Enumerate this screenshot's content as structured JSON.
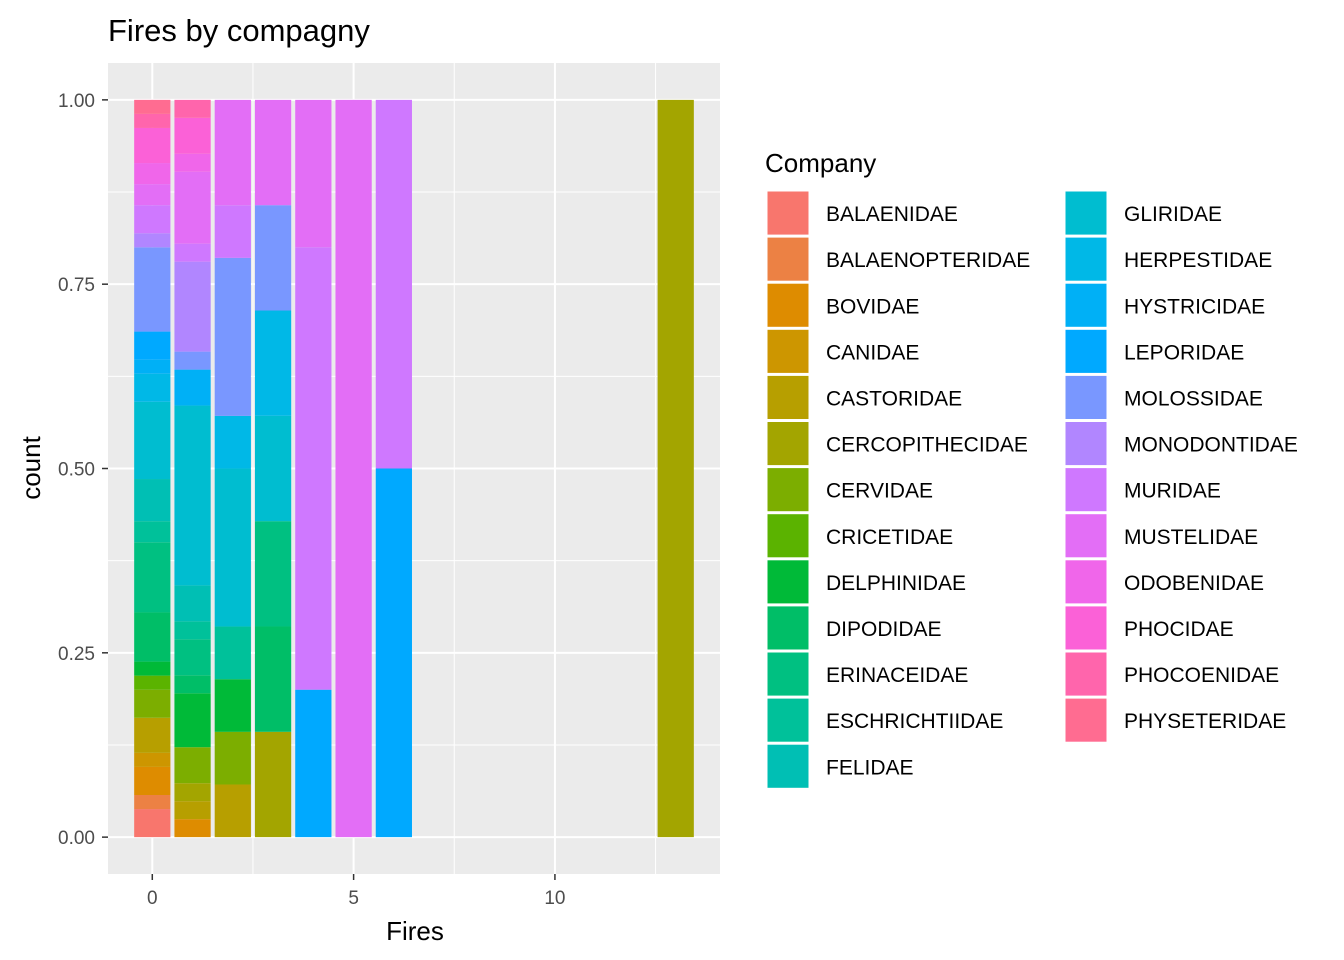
{
  "chart_data": {
    "type": "bar",
    "stacking": "fill",
    "title": "Fires by compagny",
    "xlabel": "Fires",
    "ylabel": "count",
    "xlim": [
      -1.1,
      14.1
    ],
    "ylim": [
      -0.05,
      1.05
    ],
    "x_ticks": [
      0,
      5,
      10
    ],
    "x_tick_labels": [
      "0",
      "5",
      "10"
    ],
    "y_ticks": [
      0,
      0.25,
      0.5,
      0.75,
      1
    ],
    "y_tick_labels": [
      "0.00",
      "0.25",
      "0.50",
      "0.75",
      "1.00"
    ],
    "grid": true,
    "legend": {
      "title": "Company",
      "position": "right",
      "columns": 2,
      "entries": [
        {
          "name": "BALAENIDAE",
          "color": "#F8766D"
        },
        {
          "name": "BALAENOPTERIDAE",
          "color": "#EC8144"
        },
        {
          "name": "BOVIDAE",
          "color": "#DE8C00"
        },
        {
          "name": "CANIDAE",
          "color": "#CD9600"
        },
        {
          "name": "CASTORIDAE",
          "color": "#B79F00"
        },
        {
          "name": "CERCOPITHECIDAE",
          "color": "#A3A500"
        },
        {
          "name": "CERVIDAE",
          "color": "#7CAE00"
        },
        {
          "name": "CRICETIDAE",
          "color": "#5BB300"
        },
        {
          "name": "DELPHINIDAE",
          "color": "#00BA38"
        },
        {
          "name": "DIPODIDAE",
          "color": "#00BE67"
        },
        {
          "name": "ERINACEIDAE",
          "color": "#00C081"
        },
        {
          "name": "ESCHRICHTIIDAE",
          "color": "#00C19A"
        },
        {
          "name": "FELIDAE",
          "color": "#00BFB4"
        },
        {
          "name": "GLIRIDAE",
          "color": "#00BDD0"
        },
        {
          "name": "HERPESTIDAE",
          "color": "#00B8E7"
        },
        {
          "name": "HYSTRICIDAE",
          "color": "#00B0F6"
        },
        {
          "name": "LEPORIDAE",
          "color": "#00A9FF"
        },
        {
          "name": "MOLOSSIDAE",
          "color": "#7997FF"
        },
        {
          "name": "MONODONTIDAE",
          "color": "#B186FF"
        },
        {
          "name": "MURIDAE",
          "color": "#CF78FF"
        },
        {
          "name": "MUSTELIDAE",
          "color": "#E36EF6"
        },
        {
          "name": "ODOBENIDAE",
          "color": "#F066EA"
        },
        {
          "name": "PHOCIDAE",
          "color": "#FB61D7"
        },
        {
          "name": "PHOCOENIDAE",
          "color": "#FF65AC"
        },
        {
          "name": "PHYSETERIDAE",
          "color": "#FF6C91"
        }
      ]
    },
    "bars": [
      {
        "x": 0,
        "segments": [
          {
            "company": "BALAENIDAE",
            "value": 0.04
          },
          {
            "company": "BALAENOPTERIDAE",
            "value": 0.02
          },
          {
            "company": "BOVIDAE",
            "value": 0.04
          },
          {
            "company": "CANIDAE",
            "value": 0.02
          },
          {
            "company": "CASTORIDAE",
            "value": 0.05
          },
          {
            "company": "CERVIDAE",
            "value": 0.04
          },
          {
            "company": "CRICETIDAE",
            "value": 0.02
          },
          {
            "company": "DELPHINIDAE",
            "value": 0.02
          },
          {
            "company": "DIPODIDAE",
            "value": 0.07
          },
          {
            "company": "ERINACEIDAE",
            "value": 0.1
          },
          {
            "company": "ESCHRICHTIIDAE",
            "value": 0.03
          },
          {
            "company": "FELIDAE",
            "value": 0.06
          },
          {
            "company": "GLIRIDAE",
            "value": 0.11
          },
          {
            "company": "HERPESTIDAE",
            "value": 0.04
          },
          {
            "company": "HYSTRICIDAE",
            "value": 0.02
          },
          {
            "company": "LEPORIDAE",
            "value": 0.04
          },
          {
            "company": "MOLOSSIDAE",
            "value": 0.12
          },
          {
            "company": "MONODONTIDAE",
            "value": 0.02
          },
          {
            "company": "MURIDAE",
            "value": 0.04
          },
          {
            "company": "MUSTELIDAE",
            "value": 0.03
          },
          {
            "company": "ODOBENIDAE",
            "value": 0.03
          },
          {
            "company": "PHOCIDAE",
            "value": 0.05
          },
          {
            "company": "PHOCOENIDAE",
            "value": 0.02
          },
          {
            "company": "PHYSETERIDAE",
            "value": 0.02
          }
        ]
      },
      {
        "x": 1,
        "segments": [
          {
            "company": "BOVIDAE",
            "value": 0.025
          },
          {
            "company": "CASTORIDAE",
            "value": 0.025
          },
          {
            "company": "CERCOPITHECIDAE",
            "value": 0.025
          },
          {
            "company": "CERVIDAE",
            "value": 0.05
          },
          {
            "company": "DELPHINIDAE",
            "value": 0.075
          },
          {
            "company": "DIPODIDAE",
            "value": 0.025
          },
          {
            "company": "ERINACEIDAE",
            "value": 0.05
          },
          {
            "company": "ESCHRICHTIIDAE",
            "value": 0.025
          },
          {
            "company": "FELIDAE",
            "value": 0.05
          },
          {
            "company": "GLIRIDAE",
            "value": 0.25
          },
          {
            "company": "HYSTRICIDAE",
            "value": 0.05
          },
          {
            "company": "MOLOSSIDAE",
            "value": 0.025
          },
          {
            "company": "MONODONTIDAE",
            "value": 0.125
          },
          {
            "company": "MURIDAE",
            "value": 0.025
          },
          {
            "company": "MUSTELIDAE",
            "value": 0.1
          },
          {
            "company": "ODOBENIDAE",
            "value": 0.025
          },
          {
            "company": "PHOCIDAE",
            "value": 0.05
          },
          {
            "company": "PHOCOENIDAE",
            "value": 0.025
          }
        ]
      },
      {
        "x": 2,
        "segments": [
          {
            "company": "CASTORIDAE",
            "value": 0.0714
          },
          {
            "company": "CERVIDAE",
            "value": 0.0714
          },
          {
            "company": "DELPHINIDAE",
            "value": 0.0714
          },
          {
            "company": "ESCHRICHTIIDAE",
            "value": 0.0714
          },
          {
            "company": "GLIRIDAE",
            "value": 0.2143
          },
          {
            "company": "HERPESTIDAE",
            "value": 0.0714
          },
          {
            "company": "MOLOSSIDAE",
            "value": 0.2143
          },
          {
            "company": "MURIDAE",
            "value": 0.0714
          },
          {
            "company": "MUSTELIDAE",
            "value": 0.1429
          }
        ]
      },
      {
        "x": 3,
        "segments": [
          {
            "company": "CERCOPITHECIDAE",
            "value": 0.1429
          },
          {
            "company": "DIPODIDAE",
            "value": 0.1429
          },
          {
            "company": "ERINACEIDAE",
            "value": 0.1429
          },
          {
            "company": "GLIRIDAE",
            "value": 0.1429
          },
          {
            "company": "HERPESTIDAE",
            "value": 0.1429
          },
          {
            "company": "MOLOSSIDAE",
            "value": 0.1429
          },
          {
            "company": "MUSTELIDAE",
            "value": 0.1429
          }
        ]
      },
      {
        "x": 4,
        "segments": [
          {
            "company": "LEPORIDAE",
            "value": 0.2
          },
          {
            "company": "MURIDAE",
            "value": 0.6
          },
          {
            "company": "MUSTELIDAE",
            "value": 0.2
          }
        ]
      },
      {
        "x": 5,
        "segments": [
          {
            "company": "MUSTELIDAE",
            "value": 1.0
          }
        ]
      },
      {
        "x": 6,
        "segments": [
          {
            "company": "LEPORIDAE",
            "value": 0.5
          },
          {
            "company": "MURIDAE",
            "value": 0.5
          }
        ]
      },
      {
        "x": 13,
        "segments": [
          {
            "company": "CERCOPITHECIDAE",
            "value": 1.0
          }
        ]
      }
    ]
  }
}
